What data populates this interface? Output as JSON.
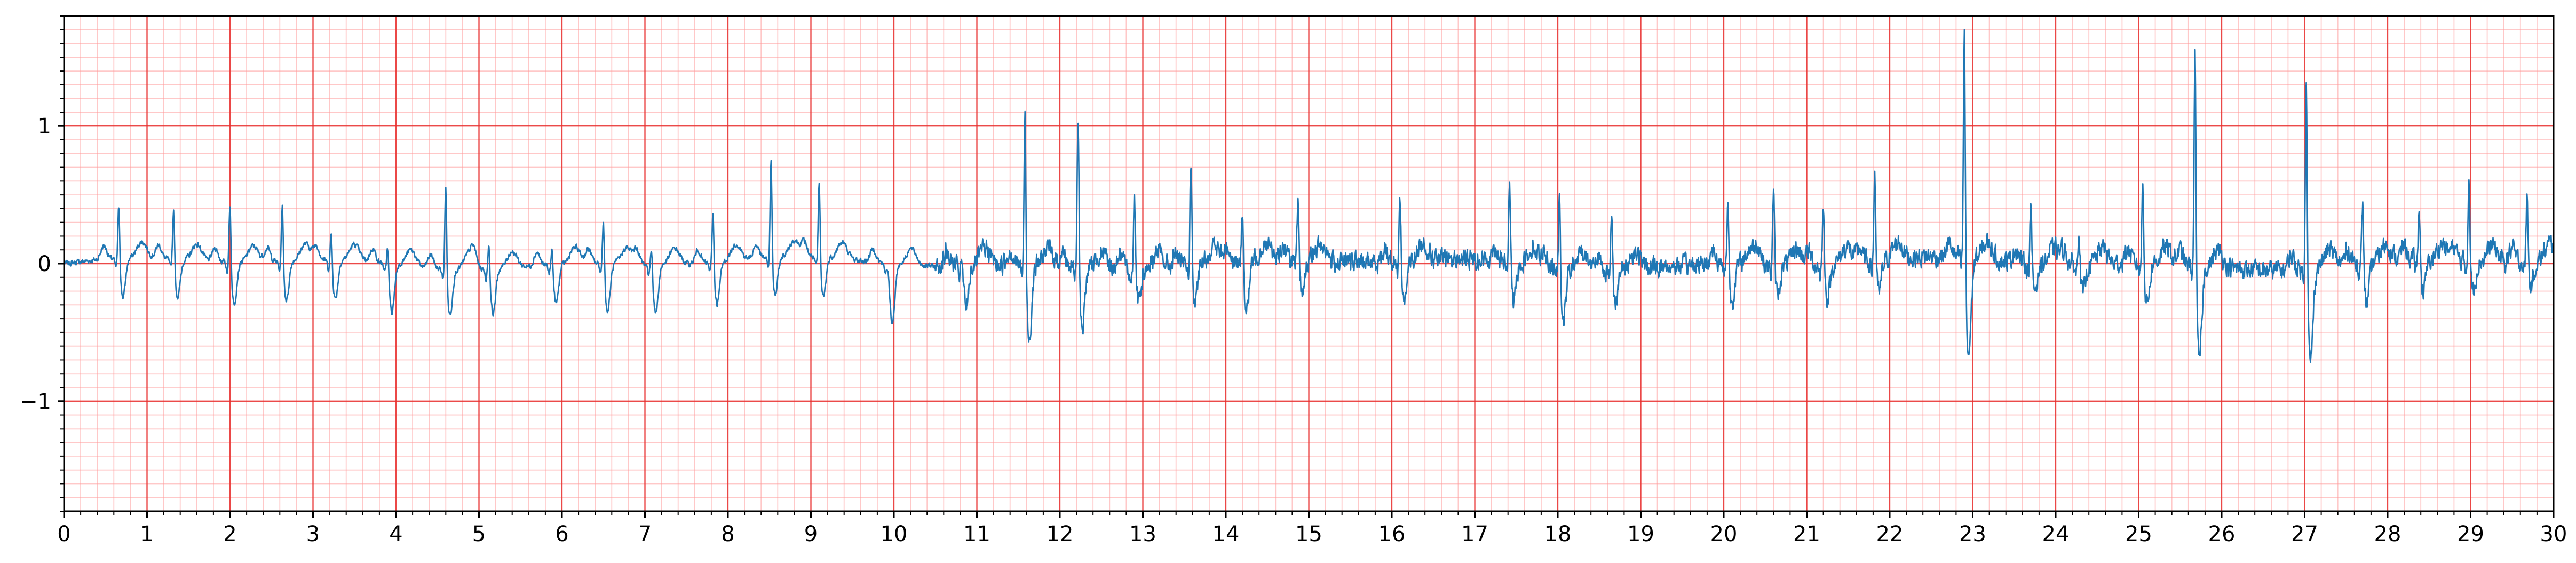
{
  "chart_data": {
    "type": "line",
    "title": "",
    "xlabel": "",
    "ylabel": "",
    "xlim": [
      0,
      30
    ],
    "ylim": [
      -1.8,
      1.8
    ],
    "x_major_ticks": [
      0,
      1,
      2,
      3,
      4,
      5,
      6,
      7,
      8,
      9,
      10,
      11,
      12,
      13,
      14,
      15,
      16,
      17,
      18,
      19,
      20,
      21,
      22,
      23,
      24,
      25,
      26,
      27,
      28,
      29,
      30
    ],
    "x_tick_labels": [
      "0",
      "1",
      "2",
      "3",
      "4",
      "5",
      "6",
      "7",
      "8",
      "9",
      "10",
      "11",
      "12",
      "13",
      "14",
      "15",
      "16",
      "17",
      "18",
      "19",
      "20",
      "21",
      "22",
      "23",
      "24",
      "25",
      "26",
      "27",
      "28",
      "29",
      "30"
    ],
    "x_minor_step": 0.2,
    "y_major_ticks": [
      -1,
      0,
      1
    ],
    "y_tick_labels": [
      "−1",
      "0",
      "1"
    ],
    "y_minor_step": 0.1,
    "grid": true,
    "grid_major_color": "#e8302f",
    "grid_minor_color": "#ff9a9a",
    "line_color": "#1f77b4",
    "series": [
      {
        "peaks": [
          {
            "t": 0.66,
            "r": 0.44,
            "s": -0.28
          },
          {
            "t": 1.32,
            "r": 0.42,
            "s": -0.27
          },
          {
            "t": 2.0,
            "r": 0.48,
            "s": -0.3
          },
          {
            "t": 2.63,
            "r": 0.47,
            "s": -0.28
          },
          {
            "t": 3.22,
            "r": 0.26,
            "s": -0.28
          },
          {
            "t": 3.9,
            "r": 0.2,
            "s": -0.35
          },
          {
            "t": 4.6,
            "r": 0.67,
            "s": -0.33
          },
          {
            "t": 5.12,
            "r": 0.26,
            "s": -0.32
          },
          {
            "t": 5.88,
            "r": 0.18,
            "s": -0.28
          },
          {
            "t": 6.5,
            "r": 0.39,
            "s": -0.35
          },
          {
            "t": 7.08,
            "r": 0.19,
            "s": -0.35
          },
          {
            "t": 7.82,
            "r": 0.43,
            "s": -0.3
          },
          {
            "t": 8.52,
            "r": 0.77,
            "s": -0.27
          },
          {
            "t": 9.1,
            "r": 0.6,
            "s": -0.28
          },
          {
            "t": 9.93,
            "r": 0.05,
            "s": -0.43
          },
          {
            "t": 10.82,
            "r": 0.09,
            "s": -0.3
          },
          {
            "t": 11.58,
            "r": 1.2,
            "s": -0.53
          },
          {
            "t": 12.22,
            "r": 1.16,
            "s": -0.43
          },
          {
            "t": 12.9,
            "r": 0.58,
            "s": -0.18
          },
          {
            "t": 13.58,
            "r": 0.85,
            "s": -0.28
          },
          {
            "t": 14.2,
            "r": 0.45,
            "s": -0.37
          },
          {
            "t": 14.87,
            "r": 0.43,
            "s": -0.23
          },
          {
            "t": 16.1,
            "r": 0.53,
            "s": -0.28
          },
          {
            "t": 17.42,
            "r": 0.63,
            "s": -0.28
          },
          {
            "t": 18.02,
            "r": 0.56,
            "s": -0.37
          },
          {
            "t": 18.65,
            "r": 0.45,
            "s": -0.22
          },
          {
            "t": 20.05,
            "r": 0.52,
            "s": -0.27
          },
          {
            "t": 20.6,
            "r": 0.58,
            "s": -0.2
          },
          {
            "t": 21.2,
            "r": 0.47,
            "s": -0.23
          },
          {
            "t": 21.82,
            "r": 0.7,
            "s": -0.23
          },
          {
            "t": 22.9,
            "r": 1.8,
            "s": -0.7
          },
          {
            "t": 23.7,
            "r": 0.45,
            "s": -0.18
          },
          {
            "t": 24.28,
            "r": 0.33,
            "s": -0.2
          },
          {
            "t": 25.05,
            "r": 0.67,
            "s": -0.28
          },
          {
            "t": 25.68,
            "r": 1.75,
            "s": -0.68
          },
          {
            "t": 27.02,
            "r": 1.57,
            "s": -0.68
          },
          {
            "t": 27.7,
            "r": 0.47,
            "s": -0.3
          },
          {
            "t": 28.38,
            "r": 0.47,
            "s": -0.22
          },
          {
            "t": 28.98,
            "r": 0.67,
            "s": -0.2
          },
          {
            "t": 29.68,
            "r": 0.53,
            "s": -0.18
          }
        ]
      }
    ]
  }
}
